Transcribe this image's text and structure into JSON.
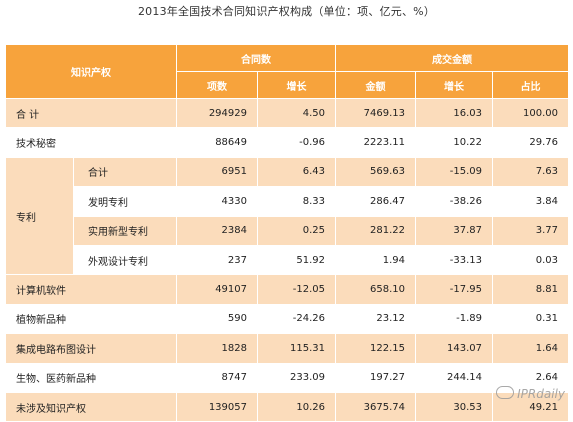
{
  "title": "2013年全国技术合同知识产权构成（单位：项、亿元、%）",
  "headers": {
    "category": "知识产权",
    "contracts": "合同数",
    "deals": "成交金额",
    "count": "项数",
    "growth1": "增长",
    "amount": "金额",
    "growth2": "增长",
    "share": "占比"
  },
  "rows": {
    "total": {
      "label": "合  计",
      "count": "294929",
      "growth": "4.50",
      "amount": "7469.13",
      "amount_growth": "16.03",
      "share": "100.00"
    },
    "tech_secret": {
      "label": "技术秘密",
      "count": "88649",
      "growth": "-0.96",
      "amount": "2223.11",
      "amount_growth": "10.22",
      "share": "29.76"
    },
    "patent": {
      "label": "专利"
    },
    "patent_total": {
      "label": "合计",
      "count": "6951",
      "growth": "6.43",
      "amount": "569.63",
      "amount_growth": "-15.09",
      "share": "7.63"
    },
    "invention": {
      "label": "发明专利",
      "count": "4330",
      "growth": "8.33",
      "amount": "286.47",
      "amount_growth": "-38.26",
      "share": "3.84"
    },
    "utility": {
      "label": "实用新型专利",
      "count": "2384",
      "growth": "0.25",
      "amount": "281.22",
      "amount_growth": "37.87",
      "share": "3.77"
    },
    "design": {
      "label": "外观设计专利",
      "count": "237",
      "growth": "51.92",
      "amount": "1.94",
      "amount_growth": "-33.13",
      "share": "0.03"
    },
    "software": {
      "label": "计算机软件",
      "count": "49107",
      "growth": "-12.05",
      "amount": "658.10",
      "amount_growth": "-17.95",
      "share": "8.81"
    },
    "plant": {
      "label": "植物新品种",
      "count": "590",
      "growth": "-24.26",
      "amount": "23.12",
      "amount_growth": "-1.89",
      "share": "0.31"
    },
    "ic": {
      "label": "集成电路布图设计",
      "count": "1828",
      "growth": "115.31",
      "amount": "122.15",
      "amount_growth": "143.07",
      "share": "1.64"
    },
    "bio": {
      "label": "生物、医药新品种",
      "count": "8747",
      "growth": "233.09",
      "amount": "197.27",
      "amount_growth": "244.14",
      "share": "2.64"
    },
    "none": {
      "label": "未涉及知识产权",
      "count": "139057",
      "growth": "10.26",
      "amount": "3675.74",
      "amount_growth": "30.53",
      "share": "49.21"
    }
  },
  "watermark": "IPRdaily",
  "colors": {
    "header": "#f7a33c",
    "band": "#fbdcbb"
  }
}
